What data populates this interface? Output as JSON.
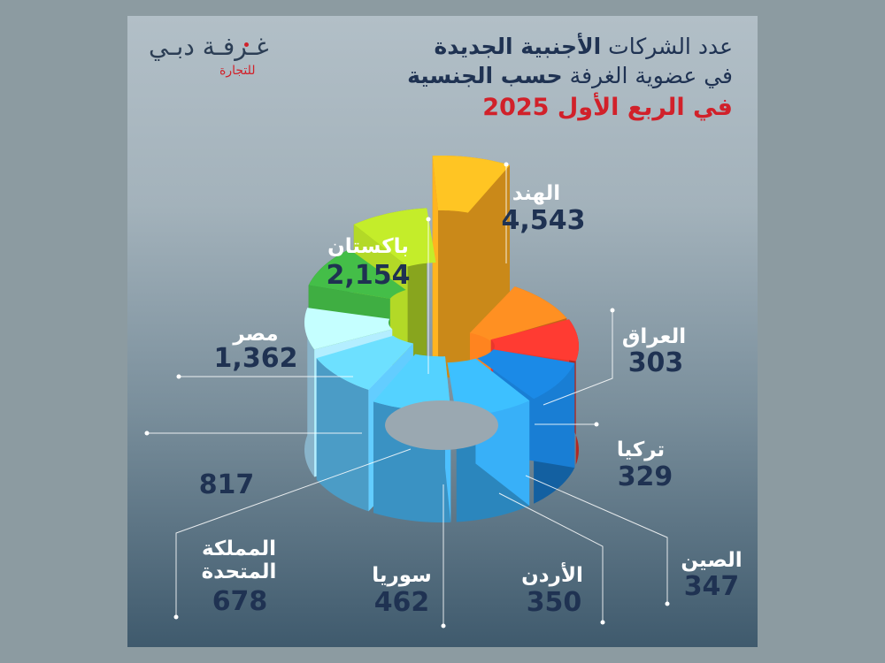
{
  "header": {
    "title_part1": "عدد الشركات ",
    "title_part1_bold": "الأجنبية الجديدة",
    "title_part2": "في عضوية الغرفة ",
    "title_part2_bold": "حسب الجنسية",
    "title_part3": "في الربع الأول 2025"
  },
  "logo": {
    "main": "غـرفـة دبـي",
    "sub": "للتجارة"
  },
  "chart_data": {
    "type": "pie",
    "title": "عدد الشركات الأجنبية الجديدة في عضوية الغرفة حسب الجنسية في الربع الأول 2025",
    "categories": [
      "الهند",
      "العراق",
      "تركيا",
      "الصين",
      "الأردن",
      "سوريا",
      "المملكة المتحدة",
      "",
      "مصر",
      "باكستان"
    ],
    "values": [
      4543,
      303,
      329,
      347,
      350,
      462,
      678,
      817,
      1362,
      2154
    ],
    "value_labels": [
      "4,543",
      "303",
      "329",
      "347",
      "350",
      "462",
      "678",
      "817",
      "1,362",
      "2,154"
    ],
    "colors": [
      "#f6a71e",
      "#ef7a1d",
      "#d8322a",
      "#1775c4",
      "#34a3e6",
      "#47b2ee",
      "#5cbef1",
      "#a7dcf6",
      "#3aa13d",
      "#a6c924"
    ]
  }
}
